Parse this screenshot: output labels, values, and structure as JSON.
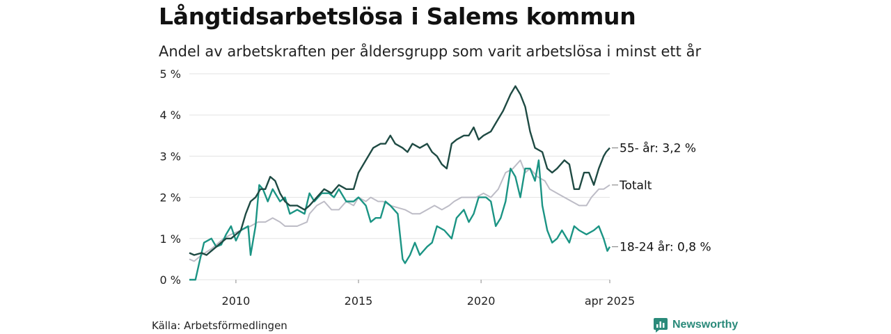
{
  "title": "Långtidsarbetslösa i Salems kommun",
  "subtitle": "Andel av arbetskraften per åldersgrupp som varit arbetslösa i minst ett år",
  "source": "Källa: Arbetsförmedlingen",
  "brand": {
    "name": "Newsworthy",
    "icon": "newsworthy-logo-icon",
    "color": "#2a8a7a"
  },
  "chart_data": {
    "type": "line",
    "title": "Långtidsarbetslösa i Salems kommun",
    "subtitle": "Andel av arbetskraften per åldersgrupp som varit arbetslösa i minst ett år",
    "y_ticks": [
      "0 %",
      "1 %",
      "2 %",
      "3 %",
      "4 %",
      "5 %"
    ],
    "x_ticks": [
      {
        "x": 2010,
        "label": "2010"
      },
      {
        "x": 2015,
        "label": "2015"
      },
      {
        "x": 2020,
        "label": "2020"
      },
      {
        "x": 2025.25,
        "label": "apr 2025"
      }
    ],
    "xlim": [
      2008.1,
      2025.25
    ],
    "ylim": [
      0,
      5
    ],
    "grid": true,
    "series": [
      {
        "name": "Totalt",
        "color": "#bdbcc6",
        "end_label": "Totalt",
        "points": [
          [
            2008.1,
            0.5
          ],
          [
            2008.3,
            0.45
          ],
          [
            2008.6,
            0.6
          ],
          [
            2009.0,
            0.75
          ],
          [
            2009.5,
            1.0
          ],
          [
            2009.8,
            1.1
          ],
          [
            2010.2,
            1.2
          ],
          [
            2010.6,
            1.3
          ],
          [
            2010.9,
            1.4
          ],
          [
            2011.2,
            1.4
          ],
          [
            2011.5,
            1.5
          ],
          [
            2011.8,
            1.4
          ],
          [
            2012.0,
            1.3
          ],
          [
            2012.5,
            1.3
          ],
          [
            2012.9,
            1.4
          ],
          [
            2013.0,
            1.6
          ],
          [
            2013.3,
            1.8
          ],
          [
            2013.6,
            1.9
          ],
          [
            2013.9,
            1.7
          ],
          [
            2014.2,
            1.7
          ],
          [
            2014.5,
            1.9
          ],
          [
            2014.8,
            1.8
          ],
          [
            2015.0,
            2.0
          ],
          [
            2015.3,
            1.9
          ],
          [
            2015.5,
            2.0
          ],
          [
            2015.8,
            1.9
          ],
          [
            2016.0,
            1.9
          ],
          [
            2016.3,
            1.8
          ],
          [
            2016.6,
            1.75
          ],
          [
            2016.9,
            1.7
          ],
          [
            2017.2,
            1.6
          ],
          [
            2017.5,
            1.6
          ],
          [
            2017.8,
            1.7
          ],
          [
            2018.1,
            1.8
          ],
          [
            2018.4,
            1.7
          ],
          [
            2018.7,
            1.8
          ],
          [
            2018.9,
            1.9
          ],
          [
            2019.2,
            2.0
          ],
          [
            2019.5,
            2.0
          ],
          [
            2019.8,
            2.0
          ],
          [
            2020.1,
            2.1
          ],
          [
            2020.4,
            2.0
          ],
          [
            2020.7,
            2.2
          ],
          [
            2021.0,
            2.6
          ],
          [
            2021.3,
            2.7
          ],
          [
            2021.6,
            2.9
          ],
          [
            2021.8,
            2.6
          ],
          [
            2022.0,
            2.7
          ],
          [
            2022.3,
            2.5
          ],
          [
            2022.6,
            2.4
          ],
          [
            2022.8,
            2.2
          ],
          [
            2023.1,
            2.1
          ],
          [
            2023.4,
            2.0
          ],
          [
            2023.7,
            1.9
          ],
          [
            2024.0,
            1.8
          ],
          [
            2024.3,
            1.8
          ],
          [
            2024.5,
            2.0
          ],
          [
            2024.8,
            2.2
          ],
          [
            2025.0,
            2.2
          ],
          [
            2025.25,
            2.3
          ]
        ]
      },
      {
        "name": "18-24 år",
        "color": "#1b9484",
        "end_label": "18-24 år: 0,8 %",
        "points": [
          [
            2008.1,
            0.0
          ],
          [
            2008.35,
            0.0
          ],
          [
            2008.5,
            0.4
          ],
          [
            2008.7,
            0.9
          ],
          [
            2009.0,
            1.0
          ],
          [
            2009.2,
            0.8
          ],
          [
            2009.4,
            0.85
          ],
          [
            2009.6,
            1.1
          ],
          [
            2009.8,
            1.3
          ],
          [
            2010.0,
            0.95
          ],
          [
            2010.2,
            1.2
          ],
          [
            2010.5,
            1.3
          ],
          [
            2010.6,
            0.6
          ],
          [
            2010.8,
            1.3
          ],
          [
            2010.95,
            2.3
          ],
          [
            2011.1,
            2.2
          ],
          [
            2011.3,
            1.9
          ],
          [
            2011.5,
            2.2
          ],
          [
            2011.8,
            1.9
          ],
          [
            2012.0,
            2.0
          ],
          [
            2012.2,
            1.6
          ],
          [
            2012.5,
            1.7
          ],
          [
            2012.8,
            1.6
          ],
          [
            2013.0,
            2.1
          ],
          [
            2013.2,
            1.9
          ],
          [
            2013.5,
            2.1
          ],
          [
            2013.8,
            2.1
          ],
          [
            2014.0,
            2.0
          ],
          [
            2014.2,
            2.2
          ],
          [
            2014.5,
            1.9
          ],
          [
            2014.8,
            1.9
          ],
          [
            2015.0,
            2.0
          ],
          [
            2015.3,
            1.8
          ],
          [
            2015.5,
            1.4
          ],
          [
            2015.7,
            1.5
          ],
          [
            2015.9,
            1.5
          ],
          [
            2016.1,
            1.9
          ],
          [
            2016.3,
            1.8
          ],
          [
            2016.6,
            1.6
          ],
          [
            2016.8,
            0.5
          ],
          [
            2016.9,
            0.4
          ],
          [
            2017.1,
            0.6
          ],
          [
            2017.3,
            0.9
          ],
          [
            2017.5,
            0.6
          ],
          [
            2017.8,
            0.8
          ],
          [
            2018.0,
            0.9
          ],
          [
            2018.2,
            1.3
          ],
          [
            2018.5,
            1.2
          ],
          [
            2018.8,
            1.0
          ],
          [
            2019.0,
            1.5
          ],
          [
            2019.3,
            1.7
          ],
          [
            2019.5,
            1.4
          ],
          [
            2019.7,
            1.6
          ],
          [
            2019.9,
            2.0
          ],
          [
            2020.2,
            2.0
          ],
          [
            2020.4,
            1.9
          ],
          [
            2020.6,
            1.3
          ],
          [
            2020.8,
            1.5
          ],
          [
            2021.0,
            1.9
          ],
          [
            2021.2,
            2.7
          ],
          [
            2021.4,
            2.5
          ],
          [
            2021.6,
            2.0
          ],
          [
            2021.8,
            2.7
          ],
          [
            2022.0,
            2.7
          ],
          [
            2022.2,
            2.4
          ],
          [
            2022.35,
            2.9
          ],
          [
            2022.5,
            1.8
          ],
          [
            2022.7,
            1.2
          ],
          [
            2022.9,
            0.9
          ],
          [
            2023.1,
            1.0
          ],
          [
            2023.3,
            1.2
          ],
          [
            2023.6,
            0.9
          ],
          [
            2023.8,
            1.3
          ],
          [
            2024.0,
            1.2
          ],
          [
            2024.3,
            1.1
          ],
          [
            2024.6,
            1.2
          ],
          [
            2024.8,
            1.3
          ],
          [
            2025.0,
            1.0
          ],
          [
            2025.15,
            0.7
          ],
          [
            2025.25,
            0.8
          ]
        ]
      },
      {
        "name": "55- år",
        "color": "#1e4a43",
        "end_label": "55- år: 3,2 %",
        "points": [
          [
            2008.1,
            0.65
          ],
          [
            2008.3,
            0.6
          ],
          [
            2008.6,
            0.65
          ],
          [
            2008.8,
            0.6
          ],
          [
            2009.0,
            0.7
          ],
          [
            2009.3,
            0.85
          ],
          [
            2009.6,
            1.0
          ],
          [
            2009.8,
            1.0
          ],
          [
            2010.0,
            1.1
          ],
          [
            2010.2,
            1.2
          ],
          [
            2010.4,
            1.6
          ],
          [
            2010.6,
            1.9
          ],
          [
            2010.8,
            2.0
          ],
          [
            2011.0,
            2.2
          ],
          [
            2011.2,
            2.2
          ],
          [
            2011.4,
            2.5
          ],
          [
            2011.6,
            2.4
          ],
          [
            2011.8,
            2.1
          ],
          [
            2012.0,
            1.9
          ],
          [
            2012.2,
            1.8
          ],
          [
            2012.5,
            1.8
          ],
          [
            2012.8,
            1.7
          ],
          [
            2013.0,
            1.8
          ],
          [
            2013.3,
            2.0
          ],
          [
            2013.6,
            2.2
          ],
          [
            2013.9,
            2.1
          ],
          [
            2014.2,
            2.3
          ],
          [
            2014.5,
            2.2
          ],
          [
            2014.8,
            2.2
          ],
          [
            2015.0,
            2.6
          ],
          [
            2015.3,
            2.9
          ],
          [
            2015.6,
            3.2
          ],
          [
            2015.9,
            3.3
          ],
          [
            2016.1,
            3.3
          ],
          [
            2016.3,
            3.5
          ],
          [
            2016.5,
            3.3
          ],
          [
            2016.8,
            3.2
          ],
          [
            2017.0,
            3.1
          ],
          [
            2017.2,
            3.3
          ],
          [
            2017.5,
            3.2
          ],
          [
            2017.8,
            3.3
          ],
          [
            2018.0,
            3.1
          ],
          [
            2018.2,
            3.0
          ],
          [
            2018.4,
            2.8
          ],
          [
            2018.6,
            2.7
          ],
          [
            2018.8,
            3.3
          ],
          [
            2019.0,
            3.4
          ],
          [
            2019.3,
            3.5
          ],
          [
            2019.5,
            3.5
          ],
          [
            2019.7,
            3.7
          ],
          [
            2019.9,
            3.4
          ],
          [
            2020.1,
            3.5
          ],
          [
            2020.4,
            3.6
          ],
          [
            2020.6,
            3.8
          ],
          [
            2020.9,
            4.1
          ],
          [
            2021.2,
            4.5
          ],
          [
            2021.4,
            4.7
          ],
          [
            2021.6,
            4.5
          ],
          [
            2021.8,
            4.2
          ],
          [
            2022.0,
            3.6
          ],
          [
            2022.2,
            3.2
          ],
          [
            2022.5,
            3.1
          ],
          [
            2022.7,
            2.7
          ],
          [
            2022.9,
            2.6
          ],
          [
            2023.1,
            2.7
          ],
          [
            2023.4,
            2.9
          ],
          [
            2023.6,
            2.8
          ],
          [
            2023.8,
            2.2
          ],
          [
            2024.0,
            2.2
          ],
          [
            2024.2,
            2.6
          ],
          [
            2024.4,
            2.6
          ],
          [
            2024.6,
            2.3
          ],
          [
            2024.8,
            2.7
          ],
          [
            2025.0,
            3.0
          ],
          [
            2025.1,
            3.1
          ],
          [
            2025.25,
            3.2
          ]
        ]
      }
    ]
  }
}
